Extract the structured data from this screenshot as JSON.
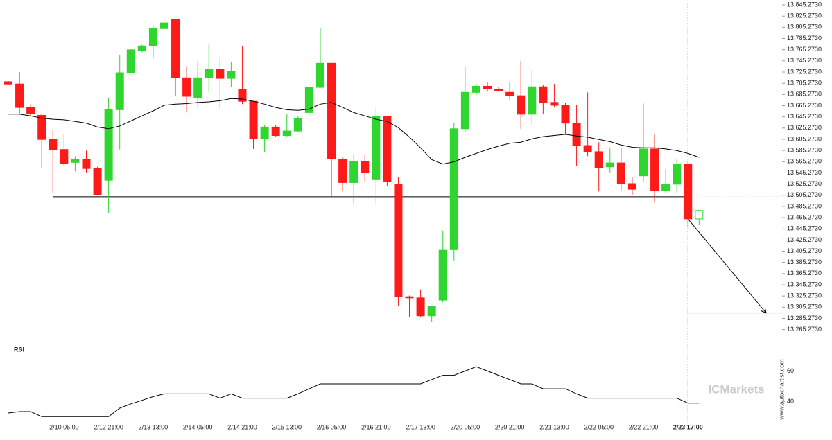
{
  "chart_data": [
    {
      "type": "candlestick",
      "categories": [
        null,
        null,
        null,
        null,
        null,
        "2/10 05:00",
        null,
        null,
        null,
        "2/12 21:00",
        null,
        null,
        null,
        "2/13 13:00",
        null,
        null,
        null,
        "2/14 05:00",
        null,
        null,
        null,
        "2/14 21:00",
        null,
        null,
        null,
        "2/15 13:00",
        null,
        null,
        null,
        "2/16 05:00",
        null,
        null,
        null,
        "2/16 21:00",
        null,
        null,
        null,
        "2/17 13:00",
        null,
        null,
        null,
        "2/20 05:00",
        null,
        null,
        null,
        "2/20 21:00",
        null,
        null,
        null,
        "2/21 13:00",
        null,
        null,
        null,
        "2/22 05:00",
        null,
        null,
        null,
        "2/22 21:00",
        null,
        null,
        null,
        "2/23 17:00",
        null
      ],
      "open": [
        13708,
        13704,
        13662,
        13648,
        13605,
        13587,
        13564,
        13570,
        13553,
        13532,
        13658,
        13724,
        13763,
        13772,
        13803,
        13820,
        13715,
        13680,
        13715,
        13730,
        13714,
        13694,
        13673,
        13606,
        13627,
        13612,
        13620,
        13653,
        13698,
        13741,
        13570,
        13528,
        13565,
        13533,
        13646,
        13525,
        13324,
        13322,
        13290,
        13318,
        13408,
        13624,
        13689,
        13700,
        13695,
        13689,
        13683,
        13650,
        13699,
        13671,
        13666,
        13634,
        13594,
        13583,
        13556,
        13563,
        13526,
        13540,
        13588,
        13514,
        13525,
        13561,
        13463
      ],
      "high": [
        13709,
        13725,
        13668,
        13650,
        13622,
        13616,
        13575,
        13585,
        13556,
        13680,
        13755,
        13767,
        13774,
        13808,
        13814,
        13820,
        13736,
        13745,
        13776,
        13752,
        13744,
        13771,
        13674,
        13631,
        13631,
        13650,
        13646,
        13698,
        13804,
        13741,
        13574,
        13579,
        13577,
        13663,
        13647,
        13538,
        13326,
        13337,
        13307,
        13442,
        13634,
        13734,
        13704,
        13707,
        13698,
        13708,
        13745,
        13729,
        13703,
        13704,
        13671,
        13666,
        13689,
        13600,
        13589,
        13590,
        13537,
        13669,
        13615,
        13552,
        13570,
        13565,
        13478
      ],
      "low": [
        13703,
        13650,
        13646,
        13554,
        13510,
        13557,
        13548,
        13546,
        13505,
        13474,
        13587,
        13723,
        13761,
        13751,
        13802,
        13683,
        13653,
        13662,
        13689,
        13659,
        13699,
        13668,
        13588,
        13582,
        13609,
        13610,
        13619,
        13652,
        13697,
        13502,
        13512,
        13489,
        13530,
        13489,
        13522,
        13308,
        13288,
        13287,
        13279,
        13314,
        13389,
        13619,
        13684,
        13690,
        13692,
        13676,
        13624,
        13631,
        13650,
        13662,
        13614,
        13558,
        13575,
        13512,
        13546,
        13514,
        13506,
        13530,
        13492,
        13510,
        13510,
        13448,
        13452
      ],
      "close": [
        13704,
        13662,
        13651,
        13605,
        13587,
        13562,
        13570,
        13553,
        13506,
        13658,
        13724,
        13765,
        13772,
        13803,
        13813,
        13715,
        13682,
        13715,
        13730,
        13714,
        13727,
        13673,
        13606,
        13627,
        13612,
        13620,
        13643,
        13698,
        13741,
        13570,
        13528,
        13565,
        13546,
        13646,
        13530,
        13324,
        13322,
        13290,
        13307,
        13407,
        13624,
        13689,
        13700,
        13695,
        13692,
        13683,
        13650,
        13699,
        13671,
        13666,
        13634,
        13594,
        13583,
        13555,
        13563,
        13526,
        13516,
        13588,
        13514,
        13525,
        13561,
        13463,
        13478
      ],
      "ma": [
        13650,
        13650,
        13647,
        13643,
        13641,
        13640,
        13637,
        13634,
        13627,
        13624,
        13629,
        13638,
        13647,
        13656,
        13666,
        13668,
        13669,
        13671,
        13672,
        13674,
        13678,
        13677,
        13673,
        13668,
        13662,
        13658,
        13657,
        13659,
        13668,
        13671,
        13662,
        13653,
        13647,
        13641,
        13637,
        13626,
        13609,
        13590,
        13569,
        13561,
        13565,
        13573,
        13580,
        13587,
        13593,
        13598,
        13600,
        13606,
        13610,
        13612,
        13614,
        13611,
        13609,
        13605,
        13601,
        13595,
        13591,
        13590,
        13590,
        13588,
        13585,
        13580,
        13573
      ],
      "support_level": 13502,
      "target_level": 13295,
      "up_color": "#2fd62f",
      "down_color": "#ff1a1a",
      "ma_color": "#000000",
      "support_color": "#000000",
      "target_color": "#f08040",
      "ylim": [
        13250,
        13854
      ],
      "yticks": [
        {
          "value": 13265.273,
          "label": "13,265.2730"
        },
        {
          "value": 13285.273,
          "label": "13,285.2730"
        },
        {
          "value": 13305.273,
          "label": "13,305.2730"
        },
        {
          "value": 13325.273,
          "label": "13,325.2730"
        },
        {
          "value": 13345.273,
          "label": "13,345.2730"
        },
        {
          "value": 13365.273,
          "label": "13,365.2730"
        },
        {
          "value": 13385.273,
          "label": "13,385.2730"
        },
        {
          "value": 13405.273,
          "label": "13,405.2730"
        },
        {
          "value": 13425.273,
          "label": "13,425.2730"
        },
        {
          "value": 13445.273,
          "label": "13,445.2730"
        },
        {
          "value": 13465.273,
          "label": "13,465.2730"
        },
        {
          "value": 13485.273,
          "label": "13,485.2730"
        },
        {
          "value": 13505.273,
          "label": "13,505.2730"
        },
        {
          "value": 13525.273,
          "label": "13,525.2730"
        },
        {
          "value": 13545.273,
          "label": "13,545.2730"
        },
        {
          "value": 13565.273,
          "label": "13,565.2730"
        },
        {
          "value": 13585.273,
          "label": "13,585.2730"
        },
        {
          "value": 13605.273,
          "label": "13,605.2730"
        },
        {
          "value": 13625.273,
          "label": "13,625.2730"
        },
        {
          "value": 13645.273,
          "label": "13,645.2730"
        },
        {
          "value": 13665.273,
          "label": "13,665.2730"
        },
        {
          "value": 13685.273,
          "label": "13,685.2730"
        },
        {
          "value": 13705.273,
          "label": "13,705.2730"
        },
        {
          "value": 13725.273,
          "label": "13,725.2730"
        },
        {
          "value": 13745.273,
          "label": "13,745.2730"
        },
        {
          "value": 13765.273,
          "label": "13,765.2730"
        },
        {
          "value": 13785.273,
          "label": "13,785.2730"
        },
        {
          "value": 13805.273,
          "label": "13,805.2730"
        },
        {
          "value": 13825.273,
          "label": "13,825.2730"
        },
        {
          "value": 13845.273,
          "label": "13,845.2730"
        }
      ]
    },
    {
      "type": "line",
      "title": "RSI",
      "color": "#000000",
      "values": [
        32.6,
        33.5,
        33.5,
        30.2,
        30.2,
        30.2,
        30.2,
        30.2,
        30.2,
        30.2,
        35.8,
        38.6,
        40.9,
        43.3,
        45.1,
        45.1,
        45.1,
        45.1,
        45.1,
        42.3,
        45.1,
        42.3,
        42.3,
        42.3,
        42.3,
        42.3,
        45.1,
        48.4,
        51.6,
        51.6,
        51.6,
        51.6,
        51.6,
        51.6,
        51.6,
        51.6,
        51.6,
        51.6,
        54.4,
        57.2,
        57.2,
        60,
        62.8,
        60,
        57.2,
        54.4,
        51.6,
        51.6,
        48.4,
        48.4,
        48.4,
        45.1,
        42.3,
        42.3,
        42.3,
        42.3,
        42.3,
        42.3,
        42.3,
        42.3,
        42.3,
        39.1,
        39.1
      ],
      "ylim": [
        29,
        76
      ],
      "yticks": [
        40,
        60
      ]
    }
  ],
  "watermark": "www.autochartist.com",
  "brand": "ICMarkets"
}
